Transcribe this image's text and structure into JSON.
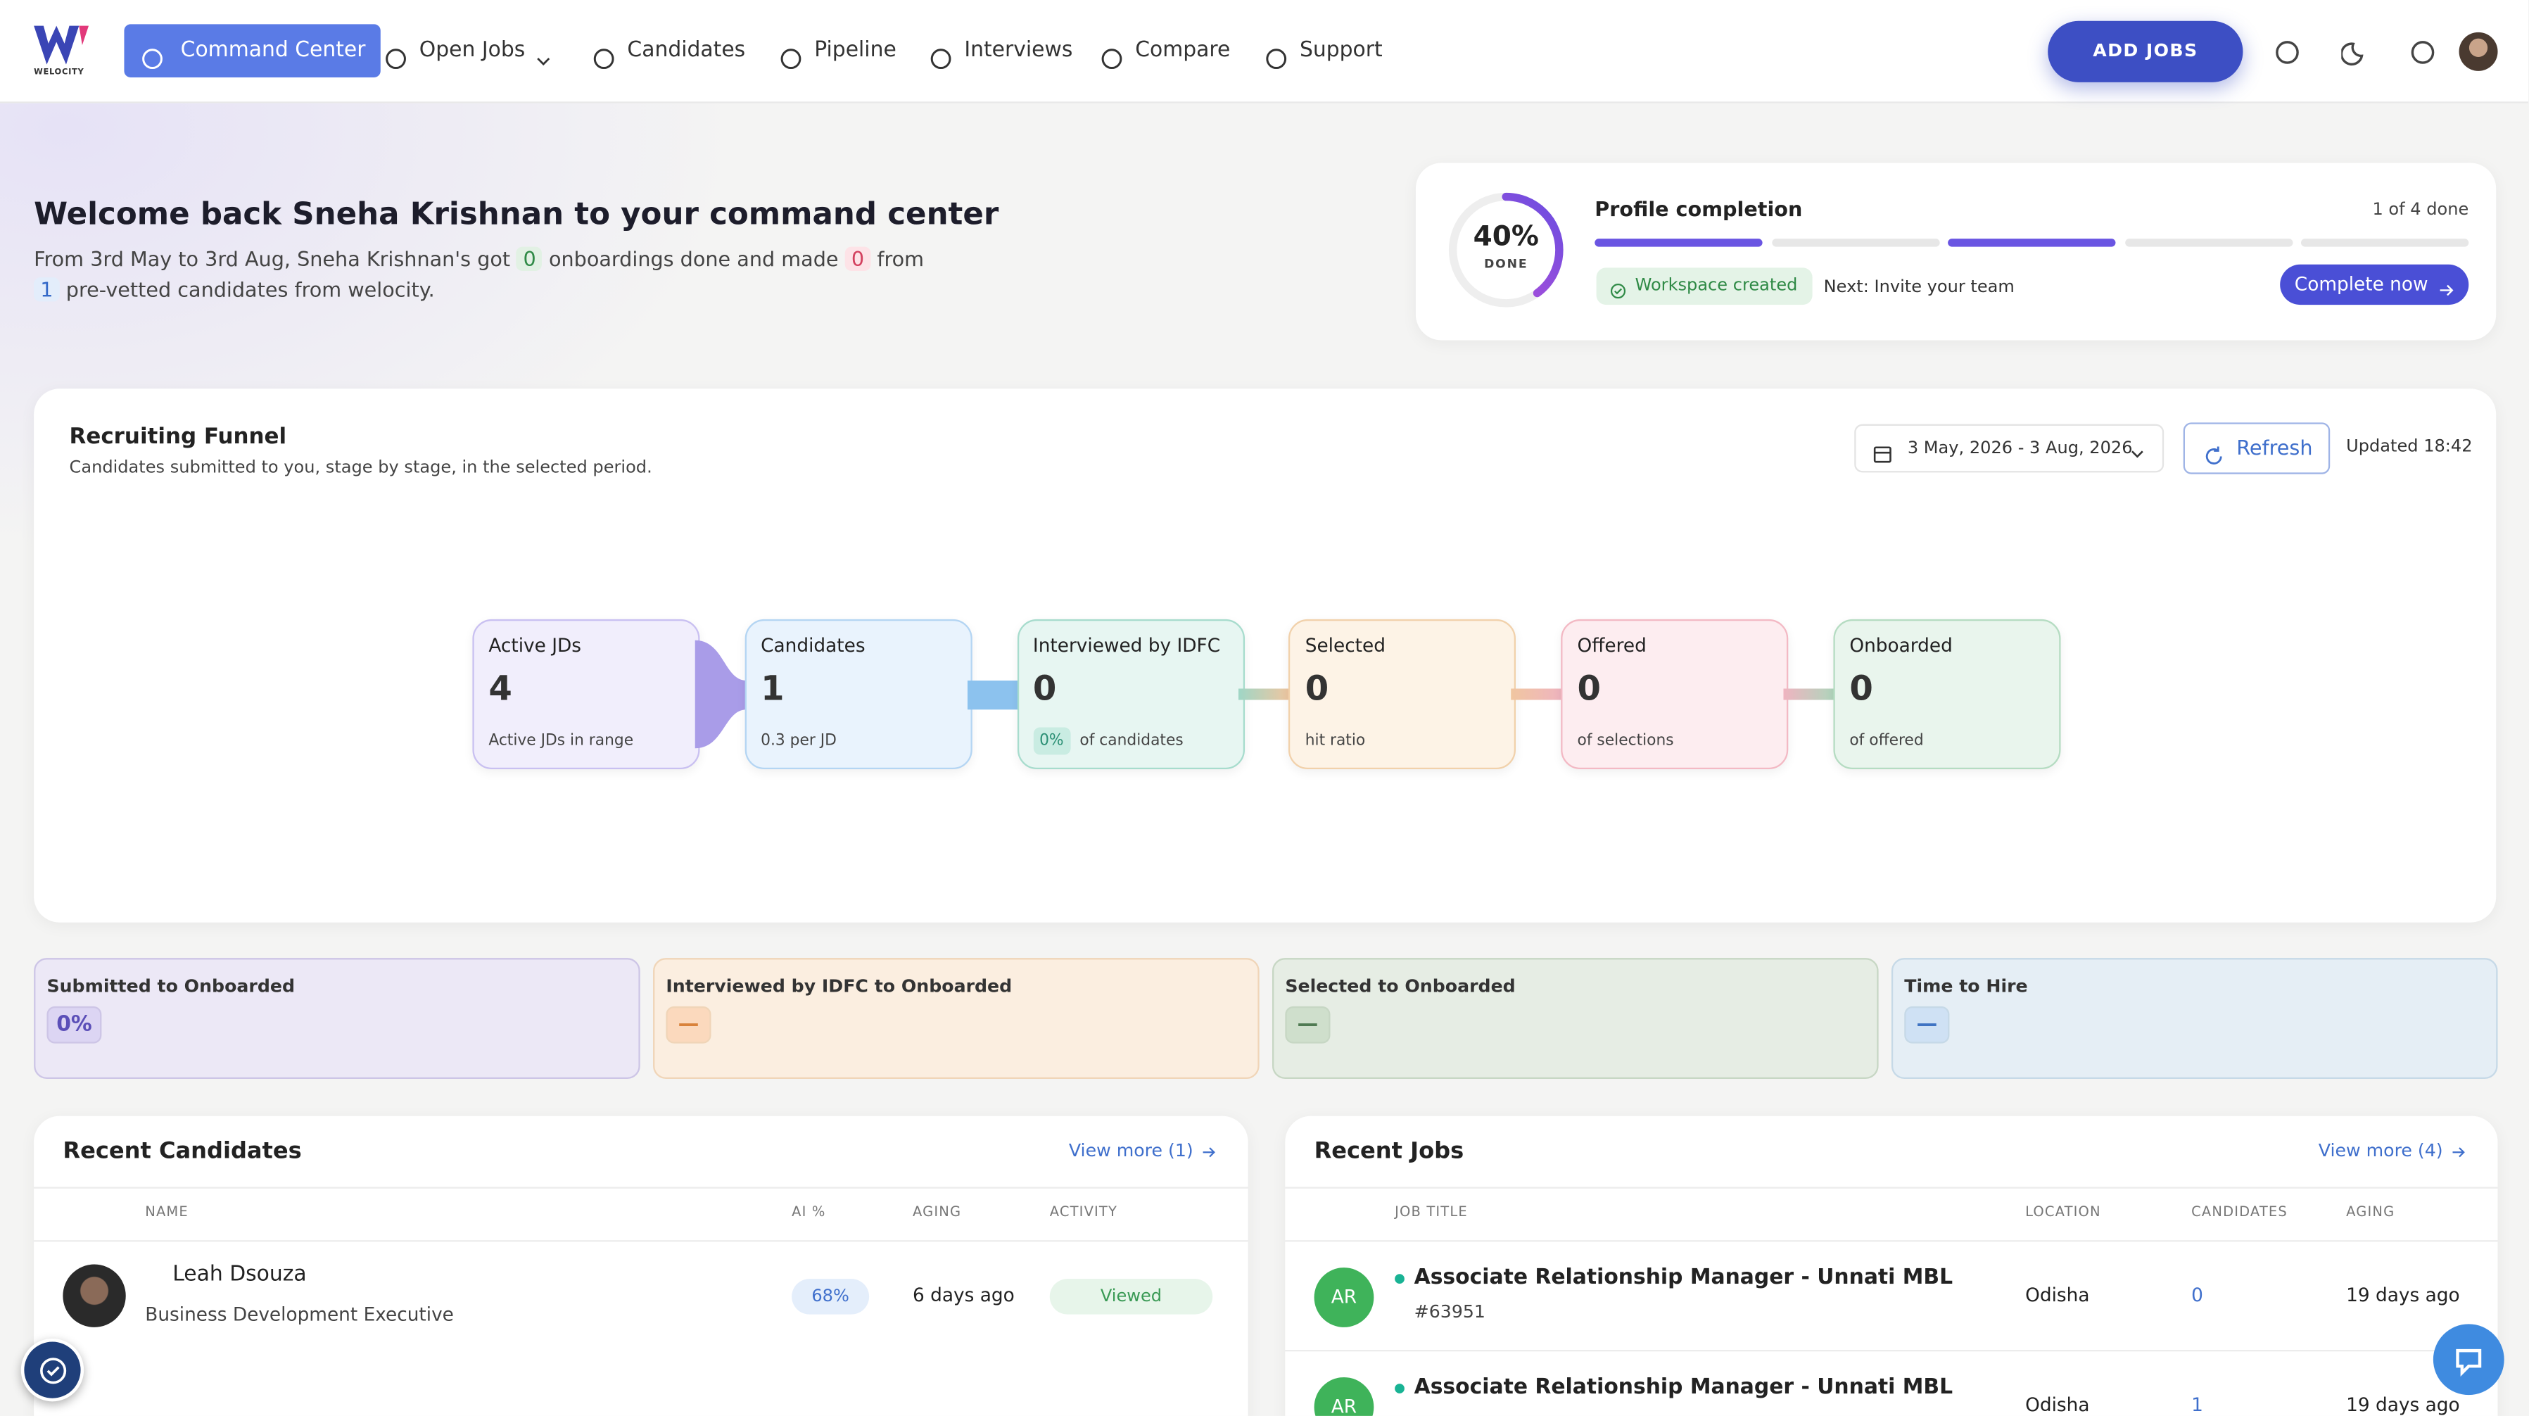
{
  "nav": {
    "logo": "WELOCITY",
    "items": [
      "Command Center",
      "Open Jobs",
      "Candidates",
      "Pipeline",
      "Interviews",
      "Compare",
      "Support"
    ],
    "add_jobs": "ADD JOBS"
  },
  "welcome": {
    "title": "Welcome back Sneha Krishnan to your command center",
    "parts": [
      "From 3rd May to 3rd Aug, Sneha Krishnan's got",
      0,
      "onboardings done and made",
      0,
      "from",
      1,
      "pre-vetted candidates from welocity."
    ]
  },
  "profile": {
    "percent": "40%",
    "done": "DONE",
    "title": "Profile completion",
    "progress": "1 of 4 done",
    "badge": "Workspace created",
    "next": "Next: Invite your team",
    "cta": "Complete now"
  },
  "funnel": {
    "title": "Recruiting Funnel",
    "subtitle": "Candidates submitted to you, stage by stage, in the selected period.",
    "date_range": "3 May, 2026 - 3 Aug, 2026",
    "refresh": "Refresh",
    "updated": "Updated 18:42",
    "stages": [
      {
        "label": "Active JDs",
        "value": 4,
        "note": "Active JDs in range"
      },
      {
        "label": "Candidates",
        "value": 1,
        "note": "0.3 per JD"
      },
      {
        "label": "Interviewed by IDFC",
        "value": 0,
        "badge": "0%",
        "note": "of candidates"
      },
      {
        "label": "Selected",
        "value": 0,
        "note": "hit ratio"
      },
      {
        "label": "Offered",
        "value": 0,
        "note": "of selections"
      },
      {
        "label": "Onboarded",
        "value": 0,
        "note": "of offered"
      }
    ]
  },
  "metrics": [
    {
      "label": "Submitted to Onboarded",
      "value": "0%"
    },
    {
      "label": "Interviewed by IDFC to Onboarded",
      "value": "—"
    },
    {
      "label": "Selected to Onboarded",
      "value": "—"
    },
    {
      "label": "Time to Hire",
      "value": "—"
    }
  ],
  "recent_candidates": {
    "title": "Recent Candidates",
    "view_more": "View more (1)",
    "columns": [
      "NAME",
      "AI %",
      "AGING",
      "ACTIVITY"
    ],
    "rows": [
      {
        "name": "Leah Dsouza",
        "role": "Business Development Executive",
        "ai": "68%",
        "aging": "6 days ago",
        "activity": "Viewed"
      }
    ]
  },
  "recent_jobs": {
    "title": "Recent Jobs",
    "view_more": "View more (4)",
    "columns": [
      "JOB TITLE",
      "LOCATION",
      "CANDIDATES",
      "AGING"
    ],
    "rows": [
      {
        "initials": "AR",
        "title": "Associate Relationship Manager - Unnati MBL",
        "id": "#63951",
        "location": "Odisha",
        "candidates": 0,
        "aging": "19 days ago"
      },
      {
        "initials": "AR",
        "title": "Associate Relationship Manager - Unnati MBL",
        "location": "Odisha",
        "candidates": 1,
        "aging": "19 days ago"
      }
    ]
  }
}
